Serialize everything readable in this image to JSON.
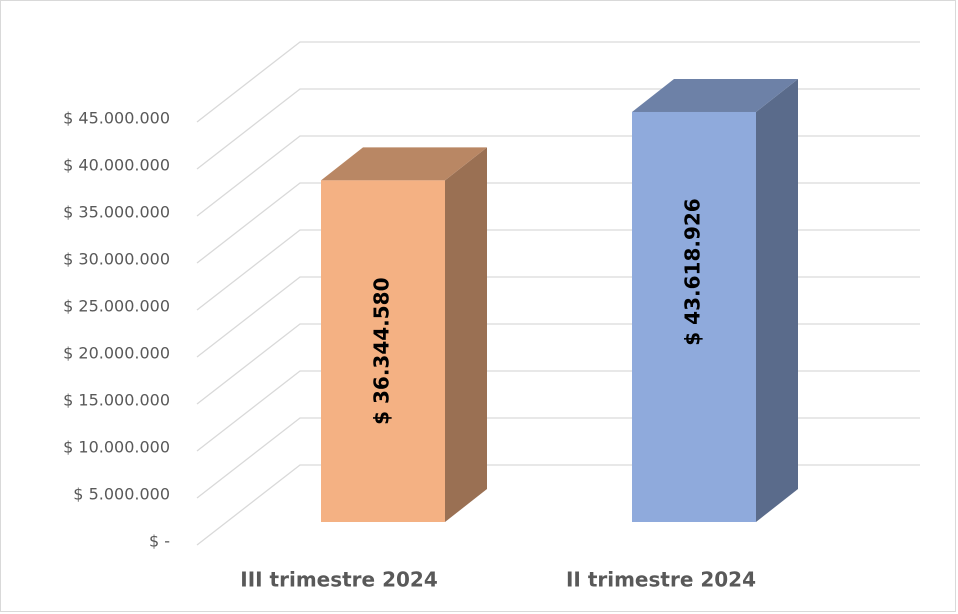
{
  "chart_data": {
    "type": "bar3d",
    "categories": [
      "III trimestre 2024",
      "II trimestre 2024"
    ],
    "values": [
      36344580,
      43618926
    ],
    "value_labels": [
      "$ 36.344.580",
      "$ 43.618.926"
    ],
    "colors": [
      "#f4b183",
      "#8faadc"
    ],
    "ylim": [
      0,
      45000000
    ],
    "yticks": [
      {
        "value": 0,
        "label": "$ -"
      },
      {
        "value": 5000000,
        "label": "$ 5.000.000"
      },
      {
        "value": 10000000,
        "label": "$ 10.000.000"
      },
      {
        "value": 15000000,
        "label": "$ 15.000.000"
      },
      {
        "value": 20000000,
        "label": "$ 20.000.000"
      },
      {
        "value": 25000000,
        "label": "$ 25.000.000"
      },
      {
        "value": 30000000,
        "label": "$ 30.000.000"
      },
      {
        "value": 35000000,
        "label": "$ 35.000.000"
      },
      {
        "value": 40000000,
        "label": "$ 40.000.000"
      },
      {
        "value": 45000000,
        "label": "$ 45.000.000"
      }
    ],
    "grid": true
  }
}
